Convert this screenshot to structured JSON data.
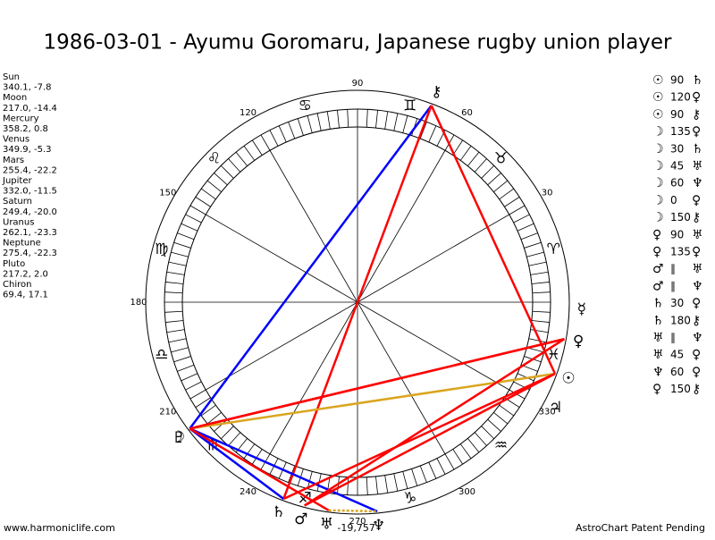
{
  "header": {
    "title": "1986-03-01 - Ayumu Goromaru, Japanese rugby union player"
  },
  "planets": [
    {
      "name": "Sun",
      "coords": "340.1, -7.8",
      "glyph": "☉"
    },
    {
      "name": "Moon",
      "coords": "217.0, -14.4",
      "glyph": "☽"
    },
    {
      "name": "Mercury",
      "coords": "358.2, 0.8",
      "glyph": "☿"
    },
    {
      "name": "Venus",
      "coords": "349.9, -5.3",
      "glyph": "♀"
    },
    {
      "name": "Mars",
      "coords": "255.4, -22.2",
      "glyph": "♂"
    },
    {
      "name": "Jupiter",
      "coords": "332.0, -11.5",
      "glyph": "♃"
    },
    {
      "name": "Saturn",
      "coords": "249.4, -20.0",
      "glyph": "♄"
    },
    {
      "name": "Uranus",
      "coords": "262.1, -23.3",
      "glyph": "♅"
    },
    {
      "name": "Neptune",
      "coords": "275.4, -22.3",
      "glyph": "♆"
    },
    {
      "name": "Pluto",
      "coords": "217.2, 2.0",
      "glyph": "♇"
    },
    {
      "name": "Chiron",
      "coords": "69.4, 17.1",
      "glyph": "⚷"
    }
  ],
  "aspects": [
    {
      "a": "☉",
      "angle": "90",
      "b": "♄"
    },
    {
      "a": "☉",
      "angle": "120",
      "b": "♀"
    },
    {
      "a": "☉",
      "angle": "90",
      "b": "⚷"
    },
    {
      "a": "☽",
      "angle": "135",
      "b": "♀"
    },
    {
      "a": "☽",
      "angle": "30",
      "b": "♄"
    },
    {
      "a": "☽",
      "angle": "45",
      "b": "♅"
    },
    {
      "a": "☽",
      "angle": "60",
      "b": "♆"
    },
    {
      "a": "☽",
      "angle": "0",
      "b": "♀"
    },
    {
      "a": "☽",
      "angle": "150",
      "b": "⚷"
    },
    {
      "a": "♀",
      "angle": "90",
      "b": "♅"
    },
    {
      "a": "♀",
      "angle": "135",
      "b": "♀"
    },
    {
      "a": "♂",
      "angle": "∥",
      "b": "♅"
    },
    {
      "a": "♂",
      "angle": "∥",
      "b": "♆"
    },
    {
      "a": "♄",
      "angle": "30",
      "b": "♀"
    },
    {
      "a": "♄",
      "angle": "180",
      "b": "⚷"
    },
    {
      "a": "♅",
      "angle": "∥",
      "b": "♆"
    },
    {
      "a": "♅",
      "angle": "45",
      "b": "♀"
    },
    {
      "a": "♆",
      "angle": "60",
      "b": "♀"
    },
    {
      "a": "♀",
      "angle": "150",
      "b": "⚷"
    }
  ],
  "signs": [
    "♈",
    "♉",
    "♊",
    "♋",
    "♌",
    "♍",
    "♎",
    "♏",
    "♐",
    "♑",
    "♒",
    "♓"
  ],
  "degree_labels": [
    30,
    60,
    90,
    120,
    150,
    180,
    210,
    240,
    270,
    300,
    330
  ],
  "neptune_note": "-19,757",
  "footer": {
    "left": "www.harmoniclife.com",
    "right": "AstroChart Patent Pending"
  }
}
